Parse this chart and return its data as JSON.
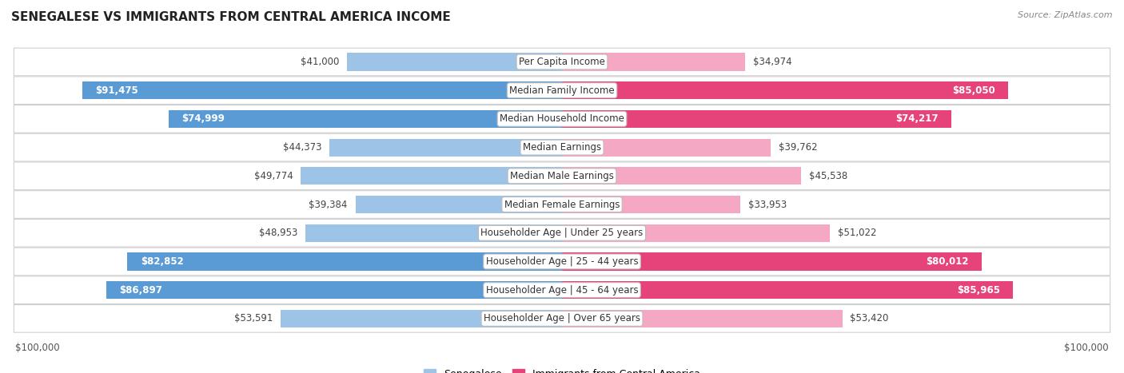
{
  "title": "SENEGALESE VS IMMIGRANTS FROM CENTRAL AMERICA INCOME",
  "source": "Source: ZipAtlas.com",
  "categories": [
    "Per Capita Income",
    "Median Family Income",
    "Median Household Income",
    "Median Earnings",
    "Median Male Earnings",
    "Median Female Earnings",
    "Householder Age | Under 25 years",
    "Householder Age | 25 - 44 years",
    "Householder Age | 45 - 64 years",
    "Householder Age | Over 65 years"
  ],
  "senegalese": [
    41000,
    91475,
    74999,
    44373,
    49774,
    39384,
    48953,
    82852,
    86897,
    53591
  ],
  "central_america": [
    34974,
    85050,
    74217,
    39762,
    45538,
    33953,
    51022,
    80012,
    85965,
    53420
  ],
  "max_val": 100000,
  "color_senegalese_dark": "#5b9bd5",
  "color_senegalese_light": "#9dc3e6",
  "color_central_america_dark": "#e5437a",
  "color_central_america_light": "#f4a8c4",
  "inside_label_threshold_s": 55000,
  "inside_label_threshold_ca": 55000,
  "bar_height": 0.62,
  "label_fontsize": 8.5,
  "title_fontsize": 11,
  "legend_fontsize": 9,
  "axis_label_fontsize": 8.5
}
